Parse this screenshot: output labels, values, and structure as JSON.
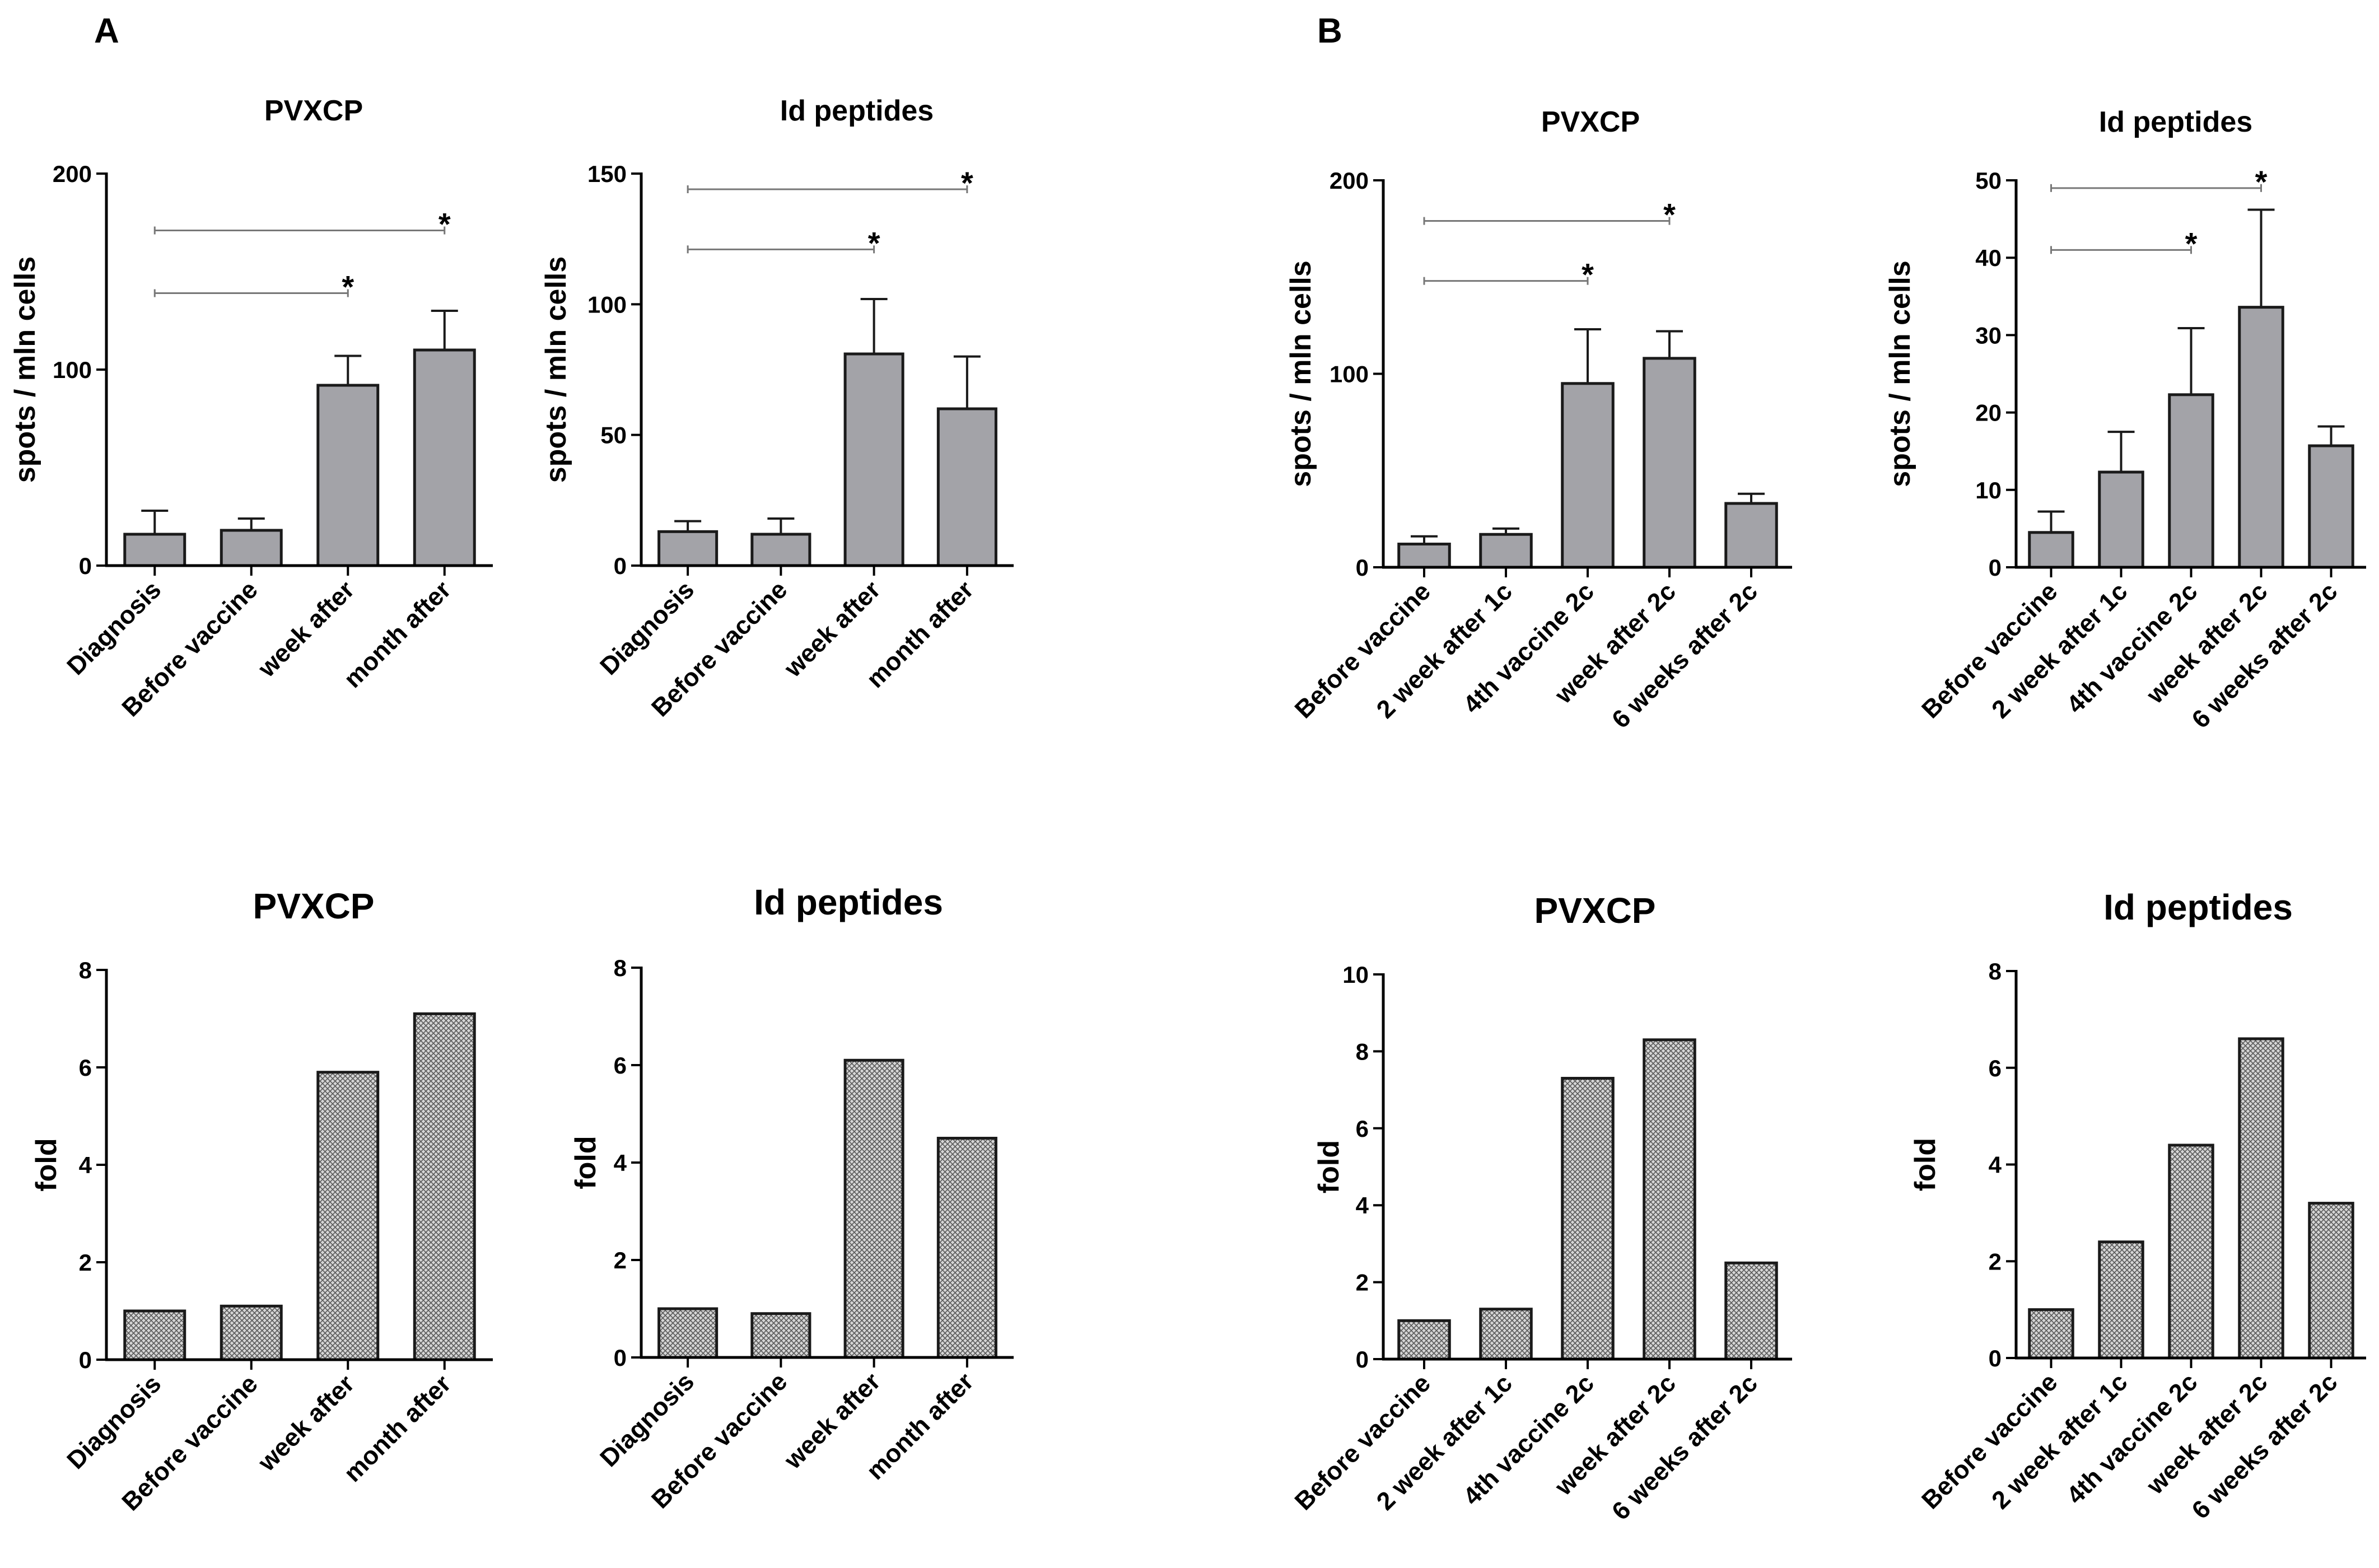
{
  "panels": [
    "A",
    "B"
  ],
  "colors": {
    "bar_fill": "#a3a3a8",
    "bar_stroke": "#1a1a1a",
    "sig_line": "#777777",
    "axis": "#000000"
  },
  "chart_data": [
    {
      "id": "A1",
      "type": "bar",
      "panel": "A",
      "title": "PVXCP",
      "ylabel": "spots / mln cells",
      "xlabel": "",
      "categories": [
        "Diagnosis",
        "Before vaccine",
        "week after",
        "month after"
      ],
      "values": [
        16,
        18,
        92,
        110
      ],
      "errors": [
        12,
        6,
        15,
        20
      ],
      "ylim": [
        0,
        200
      ],
      "yticks": [
        0,
        100,
        200
      ],
      "style": "solid",
      "significance": [
        {
          "from": 0,
          "to": 2,
          "y": 139,
          "label": "*"
        },
        {
          "from": 0,
          "to": 3,
          "y": 171,
          "label": "*"
        }
      ]
    },
    {
      "id": "A2",
      "type": "bar",
      "panel": "A",
      "title": "Id peptides",
      "ylabel": "spots / mln cells",
      "xlabel": "",
      "categories": [
        "Diagnosis",
        "Before vaccine",
        "week after",
        "month after"
      ],
      "values": [
        13,
        12,
        81,
        60
      ],
      "errors": [
        4,
        6,
        21,
        20
      ],
      "ylim": [
        0,
        150
      ],
      "yticks": [
        0,
        50,
        100,
        150
      ],
      "style": "solid",
      "significance": [
        {
          "from": 0,
          "to": 2,
          "y": 121,
          "label": "*"
        },
        {
          "from": 0,
          "to": 3,
          "y": 144,
          "label": "*"
        }
      ]
    },
    {
      "id": "B1",
      "type": "bar",
      "panel": "B",
      "title": "PVXCP",
      "ylabel": "spots / mln cells",
      "xlabel": "",
      "categories": [
        "Before vaccine",
        "2 week after 1c",
        "4th vaccine 2c",
        "week after 2c",
        "6 weeks after 2c"
      ],
      "values": [
        12,
        17,
        95,
        108,
        33
      ],
      "errors": [
        4,
        3,
        28,
        14,
        5
      ],
      "ylim": [
        0,
        200
      ],
      "yticks": [
        0,
        100,
        200
      ],
      "style": "solid",
      "significance": [
        {
          "from": 0,
          "to": 2,
          "y": 148,
          "label": "*"
        },
        {
          "from": 0,
          "to": 3,
          "y": 179,
          "label": "*"
        }
      ]
    },
    {
      "id": "B2",
      "type": "bar",
      "panel": "B",
      "title": "Id peptides",
      "ylabel": "spots / mln cells",
      "xlabel": "",
      "categories": [
        "Before vaccine",
        "2 week after 1c",
        "4th vaccine 2c",
        "week after 2c",
        "6 weeks after 2c"
      ],
      "values": [
        4.5,
        12.3,
        22.3,
        33.6,
        15.7
      ],
      "errors": [
        2.7,
        5.2,
        8.6,
        12.6,
        2.5
      ],
      "ylim": [
        0,
        50
      ],
      "yticks": [
        0,
        10,
        20,
        30,
        40,
        50
      ],
      "style": "solid",
      "significance": [
        {
          "from": 0,
          "to": 2,
          "y": 41,
          "label": "*"
        },
        {
          "from": 0,
          "to": 3,
          "y": 49,
          "label": "*"
        }
      ]
    },
    {
      "id": "A3",
      "type": "bar",
      "panel": "A",
      "title": "PVXCP",
      "ylabel": "fold",
      "xlabel": "",
      "categories": [
        "Diagnosis",
        "Before vaccine",
        "week after",
        "month after"
      ],
      "values": [
        1.0,
        1.1,
        5.9,
        7.1
      ],
      "ylim": [
        0,
        8
      ],
      "yticks": [
        0,
        2,
        4,
        6,
        8
      ],
      "style": "hatched"
    },
    {
      "id": "A4",
      "type": "bar",
      "panel": "A",
      "title": "Id peptides",
      "ylabel": "fold",
      "xlabel": "",
      "categories": [
        "Diagnosis",
        "Before vaccine",
        "week after",
        "month after"
      ],
      "values": [
        1.0,
        0.9,
        6.1,
        4.5
      ],
      "ylim": [
        0,
        8
      ],
      "yticks": [
        0,
        2,
        4,
        6,
        8
      ],
      "style": "hatched"
    },
    {
      "id": "B3",
      "type": "bar",
      "panel": "B",
      "title": "PVXCP",
      "ylabel": "fold",
      "xlabel": "",
      "categories": [
        "Before vaccine",
        "2 week after 1c",
        "4th vaccine 2c",
        "week after 2c",
        "6 weeks after 2c"
      ],
      "values": [
        1.0,
        1.3,
        7.3,
        8.3,
        2.5
      ],
      "ylim": [
        0,
        10
      ],
      "yticks": [
        0,
        2,
        4,
        6,
        8,
        10
      ],
      "style": "hatched"
    },
    {
      "id": "B4",
      "type": "bar",
      "panel": "B",
      "title": "Id peptides",
      "ylabel": "fold",
      "xlabel": "",
      "categories": [
        "Before vaccine",
        "2 week after 1c",
        "4th vaccine 2c",
        "week after 2c",
        "6 weeks after 2c"
      ],
      "values": [
        1.0,
        2.4,
        4.4,
        6.6,
        3.2
      ],
      "ylim": [
        0,
        8
      ],
      "yticks": [
        0,
        2,
        4,
        6,
        8
      ],
      "style": "hatched"
    }
  ]
}
